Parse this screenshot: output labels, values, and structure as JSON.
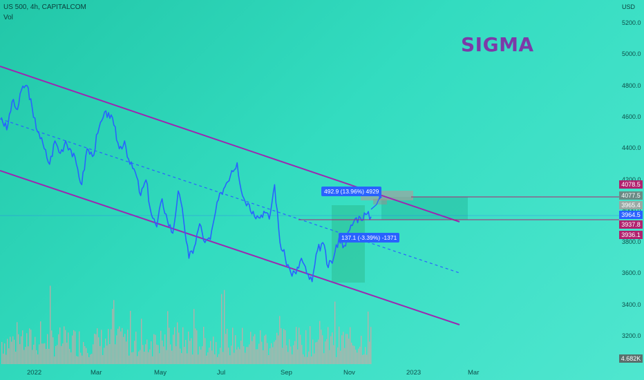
{
  "header": {
    "symbol": "US 500, 4h, CAPITALCOM",
    "indicator": "Vol"
  },
  "brand": "SIGMA",
  "currency": "USD",
  "price_tags": [
    {
      "value": "4078.5",
      "color": "#b0226e"
    },
    {
      "value": "4077.5",
      "color": "#6a8a85"
    },
    {
      "value": "3965.4",
      "color": "#9aa8a4"
    },
    {
      "value": "3964.5",
      "color": "#2962ff"
    },
    {
      "value": "3937.8",
      "color": "#b0226e"
    },
    {
      "value": "3936.1",
      "color": "#b0226e"
    }
  ],
  "volume_tag": "4.682K",
  "annotations": {
    "upper": "492.9 (13.96%) 4929",
    "lower": "137.1 (-3.39%) -1371"
  },
  "colors": {
    "price_line": "#2962ff",
    "channel": "#9c27b0",
    "volume_bar": "#e0a0a0"
  },
  "chart_data": {
    "type": "line",
    "title": "US 500, 4h, CAPITALCOM",
    "ylabel": "USD",
    "yticks": [
      3200,
      3400,
      3600,
      3800,
      4000,
      4200,
      4400,
      4600,
      4800,
      5000,
      5200
    ],
    "ylim": [
      3100,
      5250
    ],
    "xticks": [
      "2022",
      "Mar",
      "May",
      "Jul",
      "Sep",
      "Nov",
      "2023",
      "Mar"
    ],
    "grid": false,
    "series": [
      {
        "values": [
          4600,
          4520,
          4700,
          4650,
          4800,
          4790,
          4600,
          4500,
          4400,
          4300,
          4450,
          4370,
          4450,
          4390,
          4300,
          4170,
          4400,
          4350,
          4500,
          4600,
          4630,
          4550,
          4400,
          4450,
          4300,
          4250,
          4100,
          4200,
          3980,
          3900,
          4080,
          3940,
          3860,
          4130,
          3950,
          3700,
          3770,
          3920,
          3800,
          3820,
          4000,
          4120,
          4180,
          4260,
          4310,
          4100,
          4050,
          4000,
          3960,
          4000,
          3950,
          4170,
          3800,
          3700,
          3610,
          3600,
          3700,
          3600,
          3550,
          3750,
          3800,
          3640,
          3700,
          3830,
          3780,
          3880,
          3950,
          3960,
          3980,
          3965
        ]
      }
    ]
  }
}
